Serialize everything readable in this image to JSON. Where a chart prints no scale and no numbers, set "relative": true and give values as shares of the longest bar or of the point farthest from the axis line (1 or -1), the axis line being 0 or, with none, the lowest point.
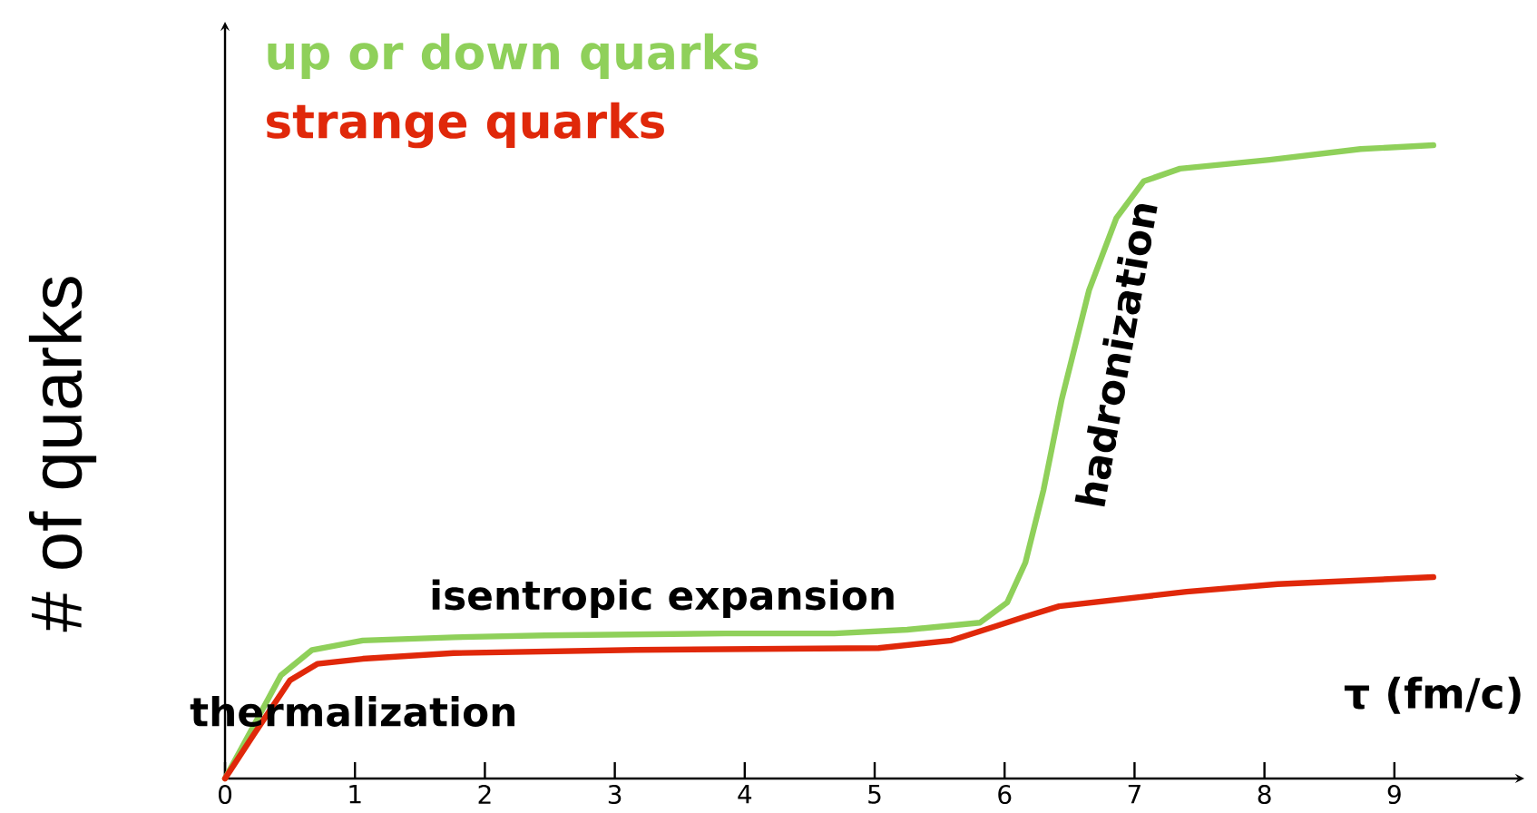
{
  "chart_data": {
    "type": "line",
    "relative": true,
    "xlabel": "τ (fm/c)",
    "ylabel": "# of quarks",
    "legend": "top left",
    "xlim": [
      0,
      10
    ],
    "xticks": [
      0,
      1,
      2,
      3,
      4,
      5,
      6,
      7,
      8,
      9
    ],
    "annotations": [
      "isentropic expansion",
      "hadronization",
      "thermalization"
    ],
    "series": [
      {
        "name": "up or down quarks",
        "color": "#8fd05a",
        "x": [
          0,
          0.22,
          0.43,
          0.67,
          1.06,
          1.76,
          2.46,
          3.85,
          4.69,
          5.25,
          5.81,
          6.02,
          6.16,
          6.3,
          6.44,
          6.65,
          6.86,
          7.07,
          7.35,
          8.04,
          8.74,
          9.3
        ],
        "values": [
          0,
          0.083,
          0.163,
          0.203,
          0.218,
          0.223,
          0.226,
          0.229,
          0.229,
          0.235,
          0.246,
          0.278,
          0.341,
          0.456,
          0.599,
          0.771,
          0.885,
          0.943,
          0.963,
          0.977,
          0.994,
          1
        ]
      },
      {
        "name": "strange quarks",
        "color": "#e0280a",
        "x": [
          0,
          0.22,
          0.5,
          0.71,
          1.06,
          1.76,
          3.16,
          5.03,
          5.59,
          5.94,
          6.15,
          6.42,
          7.4,
          8.1,
          9.3
        ],
        "values": [
          0,
          0.069,
          0.155,
          0.181,
          0.189,
          0.198,
          0.203,
          0.206,
          0.218,
          0.241,
          0.255,
          0.272,
          0.295,
          0.307,
          0.318
        ]
      }
    ]
  }
}
